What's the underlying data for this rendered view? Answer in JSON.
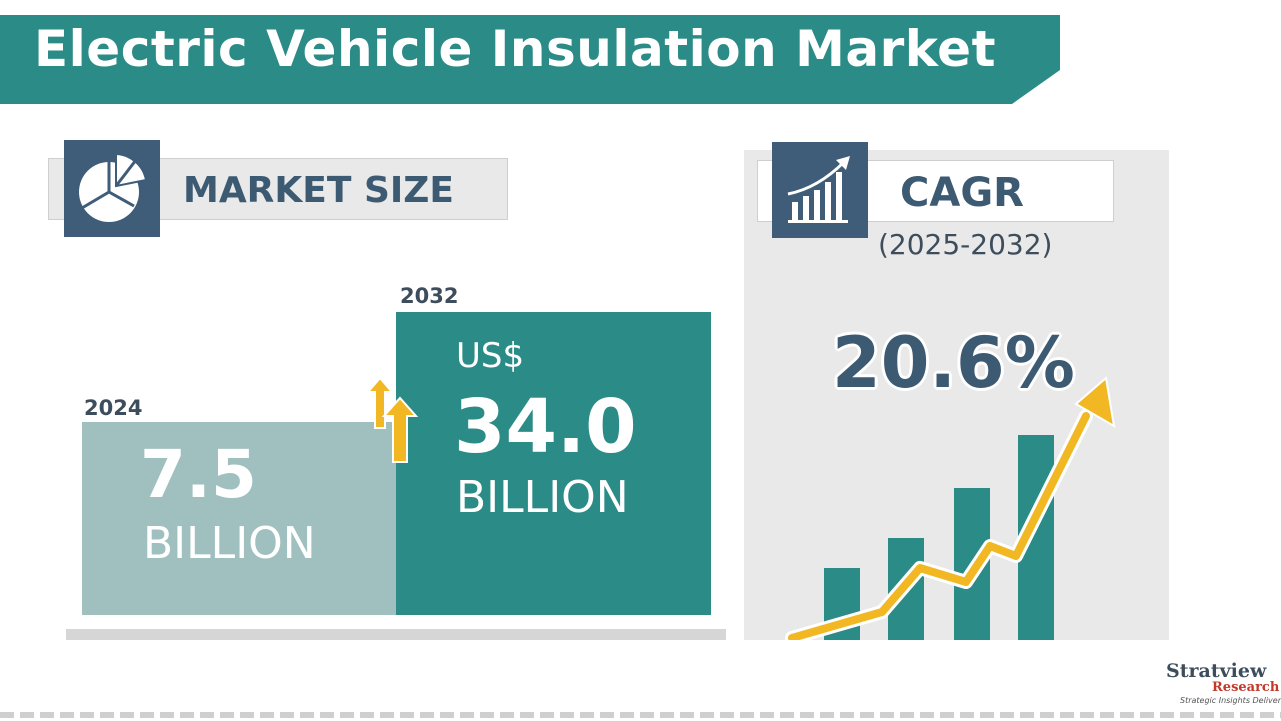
{
  "title": "Electric Vehicle Insulation Market",
  "market_size": {
    "label": "MARKET SIZE",
    "icon": "pie-chart-icon",
    "bars": [
      {
        "year": "2024",
        "currency": "",
        "value": "7.5",
        "unit": "BILLION"
      },
      {
        "year": "2032",
        "currency": "US$",
        "value": "34.0",
        "unit": "BILLION"
      }
    ],
    "growth_icon": "up-arrows-icon"
  },
  "cagr": {
    "label": "CAGR",
    "period": "(2025-2032)",
    "value": "20.6%",
    "icon": "growth-bar-chart-icon",
    "chart_icon": "rising-trend-chart-icon"
  },
  "colors": {
    "teal": "#2a8b87",
    "light_teal": "#a0bfbf",
    "navy": "#3f5c78",
    "arrow_yellow": "#f2b824",
    "panel_gray": "#e9e9e9"
  },
  "logo": {
    "name": "Stratview",
    "sub": "Research",
    "tagline": "Strategic Insights Delivered"
  }
}
